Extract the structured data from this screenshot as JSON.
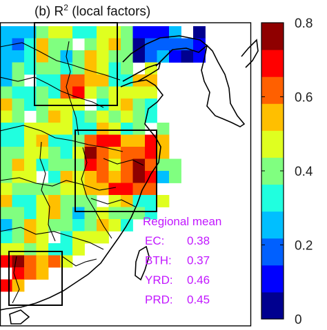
{
  "panel": {
    "label": "(b)",
    "title_main": "R",
    "title_sup": "2",
    "title_rest": "(local factors)"
  },
  "colorbar": {
    "min": 0,
    "max": 0.8,
    "ticks": [
      "0",
      "0.2",
      "0.4",
      "0.6",
      "0.8"
    ],
    "tick_values": [
      0,
      0.2,
      0.4,
      0.6,
      0.8
    ],
    "colormap": "jet",
    "colors": [
      "#00008f",
      "#0000ff",
      "#0060ff",
      "#00bfff",
      "#20ffdf",
      "#80ff80",
      "#dfff20",
      "#ffbf00",
      "#ff6000",
      "#ff0000",
      "#8f0000"
    ]
  },
  "regional_mean": {
    "heading": "Regional mean",
    "color": "#c218ff",
    "rows": [
      {
        "region": "EC:",
        "value": "0.38"
      },
      {
        "region": "BTH:",
        "value": "0.37"
      },
      {
        "region": "YRD:",
        "value": "0.46"
      },
      {
        "region": "PRD:",
        "value": "0.45"
      }
    ]
  },
  "regions": [
    "BTH",
    "YRD",
    "PRD"
  ]
}
